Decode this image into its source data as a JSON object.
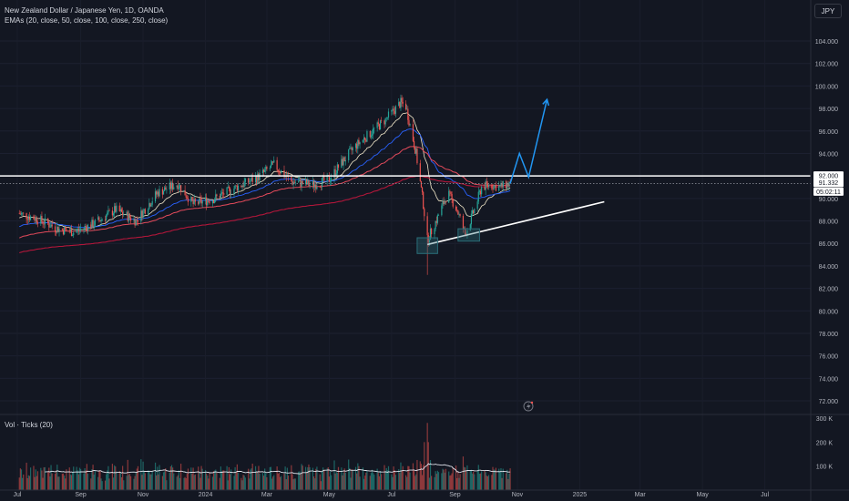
{
  "header": {
    "title": "New Zealand Dollar / Japanese Yen, 1D, OANDA",
    "indicators": "EMAs (20, close, 50, close, 100, close, 250, close)",
    "currency": "JPY"
  },
  "volume_panel": {
    "label": "Vol · Ticks (20)",
    "axis_labels": [
      "300 K",
      "200 K",
      "100 K"
    ]
  },
  "price_labels": {
    "resistance": "92.000",
    "last": "91.332",
    "countdown": "05:02:11"
  },
  "colors": {
    "background": "#131722",
    "up": "#26a69a",
    "down": "#ef5350",
    "ema20": "#f0e6c8",
    "ema50": "#2962ff",
    "ema100": "#e54a5b",
    "ema250": "#b2173a",
    "drawing": "#ffffff",
    "projection": "#2196f3",
    "box": "#2a6f7a"
  },
  "chart_data": {
    "type": "candlestick",
    "symbol": "NZDJPY",
    "interval": "1D",
    "y_axis": {
      "range": [
        70.5,
        106
      ],
      "ticks": [
        "104.000",
        "102.000",
        "100.000",
        "98.000",
        "96.000",
        "94.000",
        "92.000",
        "90.000",
        "88.000",
        "86.000",
        "84.000",
        "82.000",
        "80.000",
        "78.000",
        "76.000",
        "74.000",
        "72.000"
      ]
    },
    "x_axis": {
      "labels": [
        "Jul",
        "Sep",
        "Nov",
        "2024",
        "Mar",
        "May",
        "Jul",
        "Sep",
        "Nov",
        "2025",
        "Mar",
        "May",
        "Jul"
      ]
    },
    "price_path": [
      [
        "2023-07-01",
        88.7
      ],
      [
        "2023-07-20",
        88.2
      ],
      [
        "2023-08-10",
        87.3
      ],
      [
        "2023-08-25",
        87.0
      ],
      [
        "2023-09-15",
        87.8
      ],
      [
        "2023-10-05",
        89.0
      ],
      [
        "2023-10-25",
        88.0
      ],
      [
        "2023-11-15",
        90.5
      ],
      [
        "2023-12-05",
        91.3
      ],
      [
        "2023-12-20",
        89.5
      ],
      [
        "2024-01-10",
        90.0
      ],
      [
        "2024-01-31",
        91.0
      ],
      [
        "2024-02-20",
        91.8
      ],
      [
        "2024-03-08",
        93.0
      ],
      [
        "2024-03-25",
        91.5
      ],
      [
        "2024-04-15",
        91.2
      ],
      [
        "2024-05-01",
        91.7
      ],
      [
        "2024-05-10",
        92.8
      ],
      [
        "2024-05-25",
        94.5
      ],
      [
        "2024-06-10",
        95.8
      ],
      [
        "2024-06-25",
        97.0
      ],
      [
        "2024-07-10",
        98.5
      ],
      [
        "2024-07-15",
        98.2
      ],
      [
        "2024-07-25",
        94.0
      ],
      [
        "2024-08-01",
        89.5
      ],
      [
        "2024-08-05",
        86.3
      ],
      [
        "2024-08-15",
        88.3
      ],
      [
        "2024-08-25",
        90.5
      ],
      [
        "2024-09-03",
        89.0
      ],
      [
        "2024-09-11",
        86.8
      ],
      [
        "2024-09-20",
        89.0
      ],
      [
        "2024-09-27",
        91.0
      ],
      [
        "2024-10-05",
        91.2
      ],
      [
        "2024-10-15",
        91.0
      ],
      [
        "2024-10-25",
        91.33
      ]
    ],
    "volume": {
      "range": [
        0,
        300000
      ],
      "ticks": [
        100000,
        200000,
        300000
      ],
      "avg_level": 105000
    },
    "drawings": {
      "resistance": 92.0,
      "support_trendline": [
        [
          "2024-08-05",
          85.9
        ],
        [
          "2025-01-25",
          89.7
        ]
      ],
      "boxes": [
        {
          "x": [
            "2024-07-26",
            "2024-08-15"
          ],
          "y": [
            85.1,
            86.5
          ]
        },
        {
          "x": [
            "2024-09-04",
            "2024-09-25"
          ],
          "y": [
            86.2,
            87.3
          ]
        }
      ],
      "projection": [
        [
          "2024-10-25",
          91.33
        ],
        [
          "2024-11-03",
          94.0
        ],
        [
          "2024-11-12",
          91.9
        ],
        [
          "2024-11-30",
          98.8
        ]
      ]
    }
  }
}
